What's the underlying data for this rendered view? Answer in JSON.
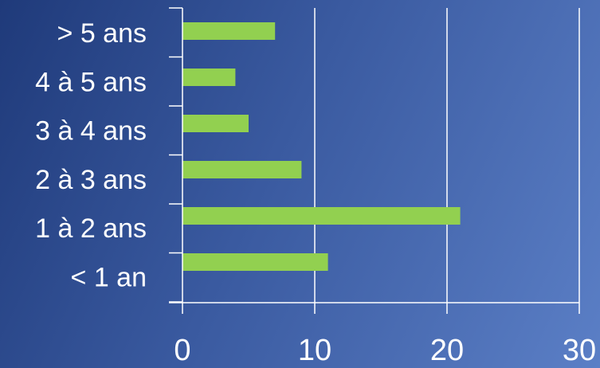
{
  "chart_data": {
    "type": "bar",
    "orientation": "horizontal",
    "categories": [
      "> 5 ans",
      "4 à 5 ans",
      "3 à 4 ans",
      "2 à 3 ans",
      "1 à 2 ans",
      "< 1 an"
    ],
    "values": [
      7,
      4,
      5,
      9,
      21,
      11
    ],
    "x_ticks": [
      "0",
      "10",
      "20",
      "30"
    ],
    "xlim": [
      0,
      30
    ],
    "grid": "vertical",
    "legend": "none",
    "title": "",
    "xlabel": "",
    "ylabel": "",
    "colors": {
      "bar": "#92d050",
      "axis": "#ffffff",
      "grid": "#ffffff",
      "text": "#ffffff",
      "background_start": "#1f3a7a",
      "background_end": "#5b7fc6"
    }
  }
}
